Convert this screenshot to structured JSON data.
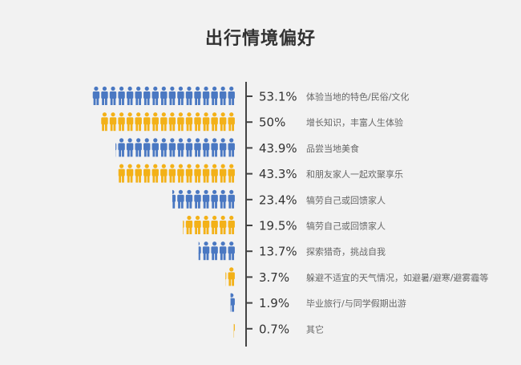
{
  "title": "出行情境偏好",
  "colors": {
    "blue": "#4a78c2",
    "yellow": "#f3b118",
    "axis": "#444444"
  },
  "chart_data": {
    "type": "bar",
    "title": "出行情境偏好",
    "unit": "%",
    "rows": [
      {
        "pct": "53.1%",
        "value": 53.1,
        "label": "体验当地的特色/民俗/文化",
        "color": "blue"
      },
      {
        "pct": "50%",
        "value": 50.0,
        "label": "增长知识，丰富人生体验",
        "color": "yellow"
      },
      {
        "pct": "43.9%",
        "value": 43.9,
        "label": "品尝当地美食",
        "color": "blue"
      },
      {
        "pct": "43.3%",
        "value": 43.3,
        "label": "和朋友家人一起欢聚享乐",
        "color": "yellow"
      },
      {
        "pct": "23.4%",
        "value": 23.4,
        "label": "犒劳自己或回馈家人",
        "color": "blue"
      },
      {
        "pct": "19.5%",
        "value": 19.5,
        "label": "犒劳自己或回馈家人",
        "color": "yellow"
      },
      {
        "pct": "13.7%",
        "value": 13.7,
        "label": "探索猎奇，挑战自我",
        "color": "blue"
      },
      {
        "pct": "3.7%",
        "value": 3.7,
        "label": "躲避不适宜的天气情况，如避暑/避寒/避雾霾等",
        "color": "yellow"
      },
      {
        "pct": "1.9%",
        "value": 1.9,
        "label": "毕业旅行/与同学假期出游",
        "color": "blue"
      },
      {
        "pct": "0.7%",
        "value": 0.7,
        "label": "其它",
        "color": "yellow"
      }
    ]
  }
}
